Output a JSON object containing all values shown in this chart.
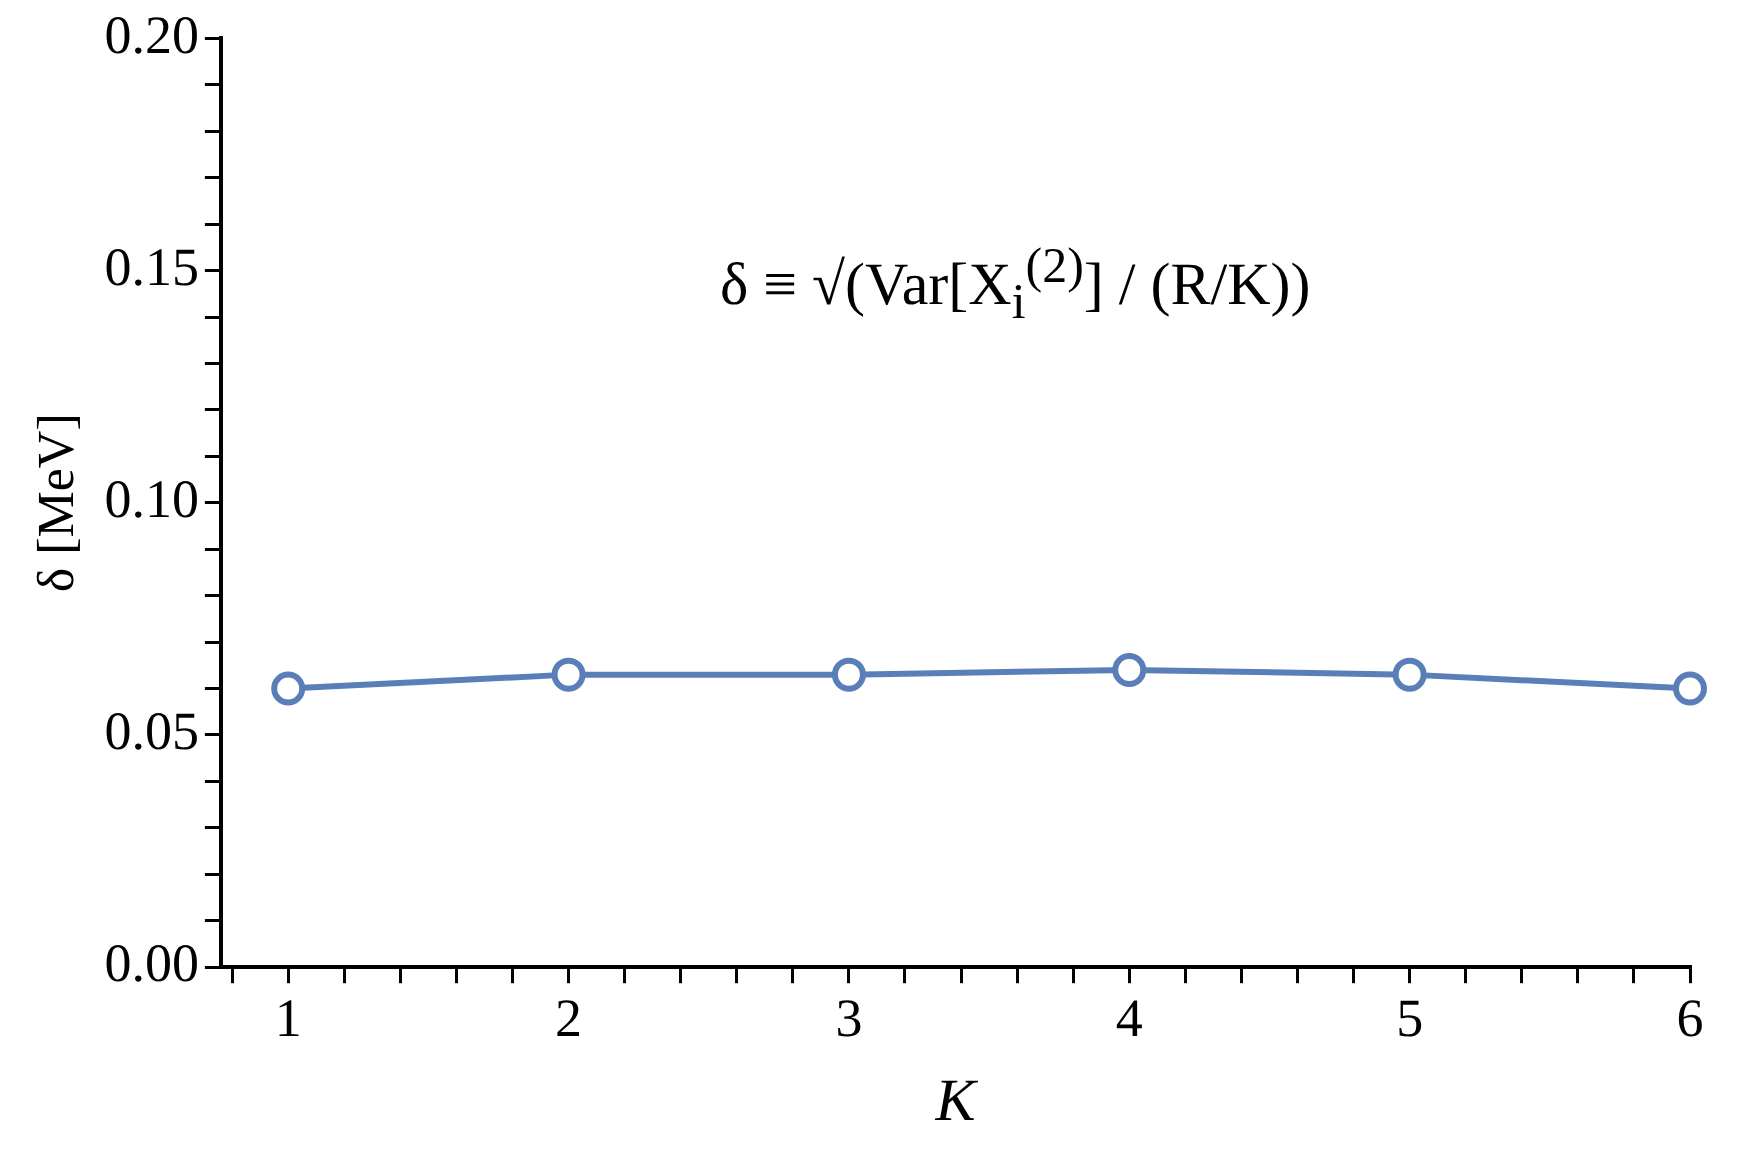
{
  "chart_data": {
    "type": "line",
    "xlabel": "K",
    "ylabel": "δ [MeV]",
    "annotations": [
      "δ ≡ √(Var[X$_{i}$$^{(2)}$] / (R/K))"
    ],
    "x": [
      1,
      2,
      3,
      4,
      5,
      6
    ],
    "series": [
      {
        "color": "#5a7fb8",
        "values": [
          0.06,
          0.063,
          0.063,
          0.064,
          0.063,
          0.06
        ]
      }
    ],
    "marker": "circle",
    "grid": false,
    "legend": false,
    "xlim": [
      0.76,
      6
    ],
    "xticks": [
      {
        "value": 0.8,
        "label": null
      },
      1,
      {
        "value": 1.2,
        "label": null
      },
      {
        "value": 1.4,
        "label": null
      },
      {
        "value": 1.6,
        "label": null
      },
      {
        "value": 1.8,
        "label": null
      },
      2,
      {
        "value": 2.2,
        "label": null
      },
      {
        "value": 2.4,
        "label": null
      },
      {
        "value": 2.6,
        "label": null
      },
      {
        "value": 2.8,
        "label": null
      },
      3,
      {
        "value": 3.2,
        "label": null
      },
      {
        "value": 3.4,
        "label": null
      },
      {
        "value": 3.6,
        "label": null
      },
      {
        "value": 3.8,
        "label": null
      },
      4,
      {
        "value": 4.2,
        "label": null
      },
      {
        "value": 4.4,
        "label": null
      },
      {
        "value": 4.6,
        "label": null
      },
      {
        "value": 4.8,
        "label": null
      },
      5,
      {
        "value": 5.2,
        "label": null
      },
      {
        "value": 5.4,
        "label": null
      },
      {
        "value": 5.6,
        "label": null
      },
      {
        "value": 5.8,
        "label": null
      },
      6
    ],
    "ylim": [
      0,
      0.2
    ],
    "yticks": [
      {
        "value": 0,
        "label": "0.00"
      },
      {
        "value": 0.01,
        "label": null
      },
      {
        "value": 0.02,
        "label": null
      },
      {
        "value": 0.03,
        "label": null
      },
      {
        "value": 0.04,
        "label": null
      },
      {
        "value": 0.05,
        "label": "0.05"
      },
      {
        "value": 0.06,
        "label": null
      },
      {
        "value": 0.07,
        "label": null
      },
      {
        "value": 0.08,
        "label": null
      },
      {
        "value": 0.09,
        "label": null
      },
      {
        "value": 0.1,
        "label": "0.10"
      },
      {
        "value": 0.11,
        "label": null
      },
      {
        "value": 0.12,
        "label": null
      },
      {
        "value": 0.13,
        "label": null
      },
      {
        "value": 0.14,
        "label": null
      },
      {
        "value": 0.15,
        "label": "0.15"
      },
      {
        "value": 0.16,
        "label": null
      },
      {
        "value": 0.17,
        "label": null
      },
      {
        "value": 0.18,
        "label": null
      },
      {
        "value": 0.19,
        "label": null
      },
      {
        "value": 0.2,
        "label": "0.20"
      }
    ]
  }
}
